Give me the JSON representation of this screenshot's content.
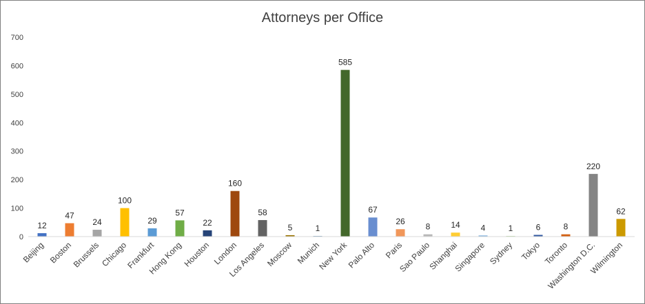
{
  "chart_data": {
    "type": "bar",
    "title": "Attorneys per Office",
    "xlabel": "",
    "ylabel": "",
    "ylim": [
      0,
      700
    ],
    "yticks": [
      0,
      100,
      200,
      300,
      400,
      500,
      600,
      700
    ],
    "grid": false,
    "legend": "none",
    "categories": [
      "Beijing",
      "Boston",
      "Brussels",
      "Chicago",
      "Frankfurt",
      "Hong Kong",
      "Houston",
      "London",
      "Los Angeles",
      "Moscow",
      "Munich",
      "New York",
      "Palo Alto",
      "Paris",
      "Sao Paulo",
      "Shanghai",
      "Singapore",
      "Sydney",
      "Tokyo",
      "Toronto",
      "Washington D.C.",
      "Wilmington"
    ],
    "values": [
      12,
      47,
      24,
      100,
      29,
      57,
      22,
      160,
      58,
      5,
      1,
      585,
      67,
      26,
      8,
      14,
      4,
      1,
      6,
      8,
      220,
      62
    ],
    "colors": [
      "#4472C4",
      "#ED7D31",
      "#A5A5A5",
      "#FFC000",
      "#5B9BD5",
      "#70AD47",
      "#264478",
      "#9E480E",
      "#636363",
      "#997300",
      "#255E91",
      "#43682B",
      "#698ED0",
      "#F1975A",
      "#B7B7B7",
      "#FFCD33",
      "#7CAFDD",
      "#8CC168",
      "#335AA1",
      "#D26012",
      "#848484",
      "#CC9A00"
    ]
  }
}
